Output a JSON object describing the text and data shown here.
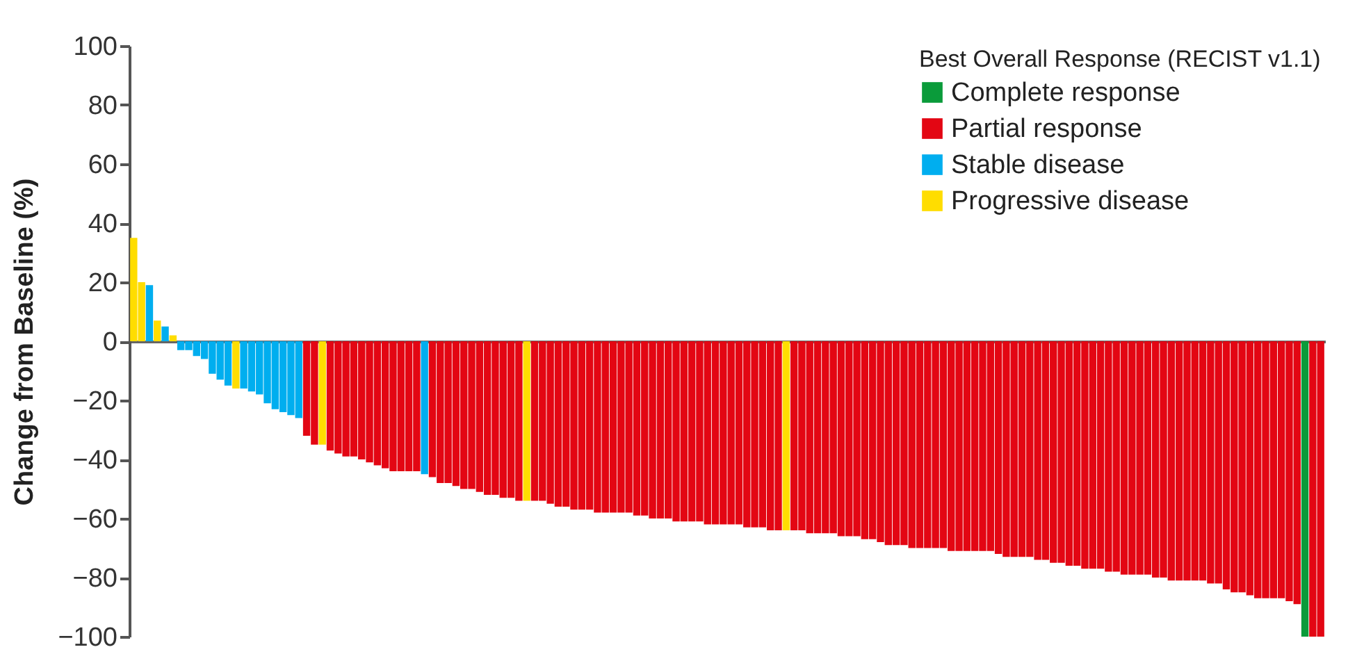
{
  "chart_data": {
    "type": "bar",
    "ylabel": "Change from Baseline (%)",
    "legend_title": "Best Overall Response (RECIST v1.1)",
    "legend": "top right",
    "categories": [
      null,
      null,
      null,
      null,
      null,
      null,
      null,
      null,
      null,
      null,
      null,
      null,
      null,
      null,
      null,
      null,
      null,
      null,
      null,
      null,
      null,
      null,
      null,
      null,
      null,
      null,
      null,
      null,
      null,
      null,
      null,
      null,
      null,
      null,
      null,
      null,
      null,
      null,
      null,
      null,
      null,
      null,
      null,
      null,
      null,
      null,
      null,
      null,
      null,
      null,
      null,
      null,
      null,
      null,
      null,
      null,
      null,
      null,
      null,
      null,
      null,
      null,
      null,
      null,
      null,
      null,
      null,
      null,
      null,
      null,
      null,
      null,
      null,
      null,
      null,
      null,
      null,
      null,
      null,
      null,
      null,
      null,
      null,
      null,
      null,
      null,
      null,
      null,
      null,
      null,
      null,
      null,
      null,
      null,
      null,
      null,
      null,
      null,
      null,
      null,
      null,
      null,
      null,
      null,
      null,
      null,
      null,
      null,
      null,
      null,
      null,
      null,
      null,
      null,
      null,
      null,
      null,
      null,
      null,
      null,
      null,
      null,
      null,
      null,
      null,
      null,
      null,
      null,
      null,
      null,
      null,
      null,
      null,
      null,
      null,
      null,
      null,
      null,
      null,
      null,
      null,
      null,
      null,
      null,
      null,
      null,
      null,
      null,
      null,
      null,
      null,
      null
    ],
    "ylim": [
      -100,
      100
    ],
    "yticks": [
      -100,
      -80,
      -60,
      -40,
      -20,
      0,
      20,
      40,
      60,
      80,
      100
    ],
    "series": [
      {
        "name": "Complete response",
        "color": "#0a9b3a",
        "values": [
          null,
          null,
          null,
          null,
          null,
          null,
          null,
          null,
          null,
          null,
          null,
          null,
          null,
          null,
          null,
          null,
          null,
          null,
          null,
          null,
          null,
          null,
          null,
          null,
          null,
          null,
          null,
          null,
          null,
          null,
          null,
          null,
          null,
          null,
          null,
          null,
          null,
          null,
          null,
          null,
          null,
          null,
          null,
          null,
          null,
          null,
          null,
          null,
          null,
          null,
          null,
          null,
          null,
          null,
          null,
          null,
          null,
          null,
          null,
          null,
          null,
          null,
          null,
          null,
          null,
          null,
          null,
          null,
          null,
          null,
          null,
          null,
          null,
          null,
          null,
          null,
          null,
          null,
          null,
          null,
          null,
          null,
          null,
          null,
          null,
          null,
          null,
          null,
          null,
          null,
          null,
          null,
          null,
          null,
          null,
          null,
          null,
          null,
          null,
          null,
          null,
          null,
          null,
          null,
          null,
          null,
          null,
          null,
          null,
          null,
          null,
          null,
          null,
          null,
          null,
          null,
          null,
          null,
          null,
          null,
          null,
          null,
          null,
          null,
          null,
          null,
          null,
          null,
          null,
          null,
          null,
          null,
          null,
          null,
          null,
          null,
          null,
          null,
          null,
          null,
          null,
          null,
          null,
          null,
          null,
          null,
          null,
          null,
          null,
          -100,
          null,
          null
        ]
      },
      {
        "name": "Partial response",
        "color": "#e30613",
        "values": [
          null,
          null,
          null,
          null,
          null,
          null,
          null,
          null,
          null,
          null,
          null,
          null,
          null,
          null,
          null,
          null,
          null,
          null,
          null,
          null,
          null,
          null,
          -32,
          -35,
          null,
          -37,
          -38,
          -39,
          -39,
          -40,
          -41,
          -42,
          -43,
          -44,
          -44,
          -44,
          -44,
          null,
          -46,
          -48,
          -48,
          -49,
          -50,
          -50,
          -51,
          -52,
          -52,
          -53,
          -53,
          -54,
          null,
          -54,
          -54,
          -55,
          -56,
          -56,
          -57,
          -57,
          -57,
          -58,
          -58,
          -58,
          -58,
          -58,
          -59,
          -59,
          -60,
          -60,
          -60,
          -61,
          -61,
          -61,
          -61,
          -62,
          -62,
          -62,
          -62,
          -62,
          -63,
          -63,
          -63,
          -64,
          -64,
          null,
          -64,
          -64,
          -65,
          -65,
          -65,
          -65,
          -66,
          -66,
          -66,
          -67,
          -67,
          -68,
          -69,
          -69,
          -69,
          -70,
          -70,
          -70,
          -70,
          -70,
          -71,
          -71,
          -71,
          -71,
          -71,
          -71,
          -72,
          -73,
          -73,
          -73,
          -73,
          -74,
          -74,
          -75,
          -75,
          -76,
          -76,
          -77,
          -77,
          -77,
          -78,
          -78,
          -79,
          -79,
          -79,
          -79,
          -80,
          -80,
          -81,
          -81,
          -81,
          -81,
          -81,
          -82,
          -82,
          -84,
          -85,
          -85,
          -86,
          -87,
          -87,
          -87,
          -87,
          -88,
          -89,
          null,
          -100,
          -100
        ]
      },
      {
        "name": "Stable disease",
        "color": "#00aeef",
        "values": [
          null,
          null,
          19,
          null,
          5,
          null,
          -3,
          -3,
          -5,
          -6,
          -11,
          -13,
          -15,
          null,
          -16,
          -17,
          -18,
          -21,
          -23,
          -24,
          -25,
          -26,
          null,
          null,
          null,
          null,
          null,
          null,
          null,
          null,
          null,
          null,
          null,
          null,
          null,
          null,
          null,
          -45,
          null,
          null,
          null,
          null,
          null,
          null,
          null,
          null,
          null,
          null,
          null,
          null,
          null,
          null,
          null,
          null,
          null,
          null,
          null,
          null,
          null,
          null,
          null,
          null,
          null,
          null,
          null,
          null,
          null,
          null,
          null,
          null,
          null,
          null,
          null,
          null,
          null,
          null,
          null,
          null,
          null,
          null,
          null,
          null,
          null,
          null,
          null,
          null,
          null,
          null,
          null,
          null,
          null,
          null,
          null,
          null,
          null,
          null,
          null,
          null,
          null,
          null,
          null,
          null,
          null,
          null,
          null,
          null,
          null,
          null,
          null,
          null,
          null,
          null,
          null,
          null,
          null,
          null,
          null,
          null,
          null,
          null,
          null,
          null,
          null,
          null,
          null,
          null,
          null,
          null,
          null,
          null,
          null,
          null,
          null,
          null,
          null,
          null,
          null,
          null,
          null,
          null,
          null,
          null,
          null,
          null,
          null,
          null,
          null,
          null,
          null,
          null,
          null,
          null
        ]
      },
      {
        "name": "Progressive disease",
        "color": "#ffdd00",
        "values": [
          35,
          20,
          null,
          7,
          null,
          2,
          null,
          null,
          null,
          null,
          null,
          null,
          null,
          -16,
          null,
          null,
          null,
          null,
          null,
          null,
          null,
          null,
          null,
          null,
          -35,
          null,
          null,
          null,
          null,
          null,
          null,
          null,
          null,
          null,
          null,
          null,
          null,
          null,
          null,
          null,
          null,
          null,
          null,
          null,
          null,
          null,
          null,
          null,
          null,
          null,
          -54,
          null,
          null,
          null,
          null,
          null,
          null,
          null,
          null,
          null,
          null,
          null,
          null,
          null,
          null,
          null,
          null,
          null,
          null,
          null,
          null,
          null,
          null,
          null,
          null,
          null,
          null,
          null,
          null,
          null,
          null,
          null,
          null,
          -64,
          null,
          null,
          null,
          null,
          null,
          null,
          null,
          null,
          null,
          null,
          null,
          null,
          null,
          null,
          null,
          null,
          null,
          null,
          null,
          null,
          null,
          null,
          null,
          null,
          null,
          null,
          null,
          null,
          null,
          null,
          null,
          null,
          null,
          null,
          null,
          null,
          null,
          null,
          null,
          null,
          null,
          null,
          null,
          null,
          null,
          null,
          null,
          null,
          null,
          null,
          null,
          null,
          null,
          null,
          null,
          null,
          null,
          null,
          null,
          null,
          null,
          null,
          null,
          null,
          null,
          null,
          null,
          null
        ]
      }
    ]
  }
}
